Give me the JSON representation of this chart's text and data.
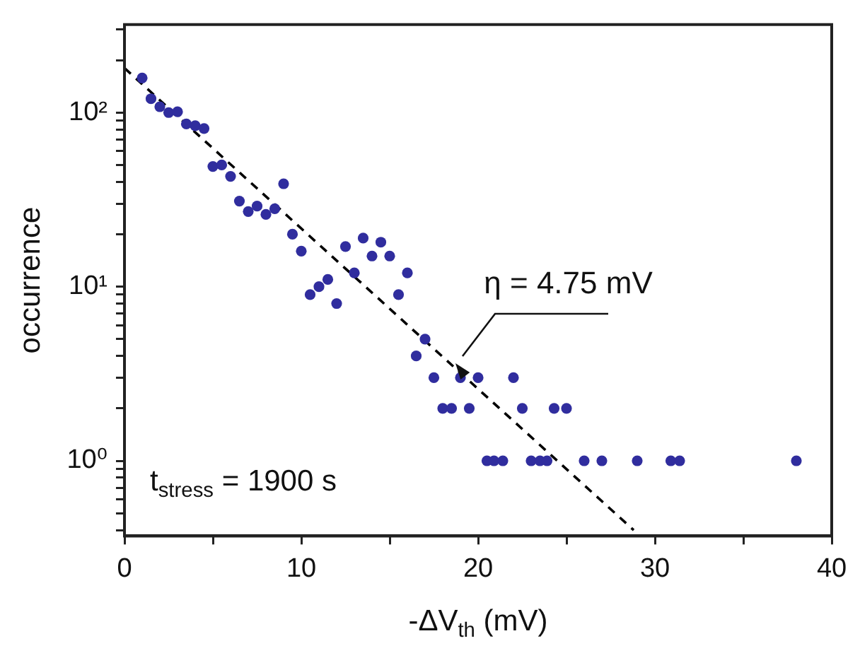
{
  "chart_data": {
    "type": "scatter",
    "xlabel": "-ΔV$_{th}$ (mV)",
    "ylabel": "occurrence",
    "log": "y",
    "grid": false,
    "legend": false,
    "marker": "circle",
    "xlim": [
      0,
      40
    ],
    "xticks": [
      0,
      {
        "value": 5,
        "label": null
      },
      10,
      {
        "value": 15,
        "label": null
      },
      20,
      {
        "value": 25,
        "label": null
      },
      30,
      {
        "value": 35,
        "label": null
      },
      40
    ],
    "ylim": [
      0.37,
      320
    ],
    "yticks": [
      {
        "value": 0.4,
        "label": null
      },
      {
        "value": 0.5,
        "label": null
      },
      {
        "value": 0.6,
        "label": null
      },
      {
        "value": 0.7,
        "label": null
      },
      {
        "value": 0.8,
        "label": null
      },
      {
        "value": 0.9,
        "label": null
      },
      {
        "value": 1,
        "label": "10⁰"
      },
      {
        "value": 2,
        "label": null
      },
      {
        "value": 3,
        "label": null
      },
      {
        "value": 4,
        "label": null
      },
      {
        "value": 5,
        "label": null
      },
      {
        "value": 6,
        "label": null
      },
      {
        "value": 7,
        "label": null
      },
      {
        "value": 8,
        "label": null
      },
      {
        "value": 9,
        "label": null
      },
      {
        "value": 10,
        "label": "10¹"
      },
      {
        "value": 20,
        "label": null
      },
      {
        "value": 30,
        "label": null
      },
      {
        "value": 40,
        "label": null
      },
      {
        "value": 50,
        "label": null
      },
      {
        "value": 60,
        "label": null
      },
      {
        "value": 70,
        "label": null
      },
      {
        "value": 80,
        "label": null
      },
      {
        "value": 90,
        "label": null
      },
      {
        "value": 100,
        "label": "10²"
      },
      {
        "value": 200,
        "label": null
      },
      {
        "value": 300,
        "label": null
      }
    ],
    "series": [
      {
        "color": "#302d9e",
        "x": [
          1.0,
          1.5,
          2.0,
          2.5,
          3.0,
          3.5,
          4.0,
          4.5,
          5.0,
          5.5,
          6.0,
          6.5,
          7.0,
          7.5,
          8.0,
          8.5,
          9.0,
          9.5,
          10.0,
          10.5,
          11.0,
          11.5,
          12.0,
          12.5,
          13.0,
          13.5,
          14.0,
          14.5,
          15.0,
          15.5,
          16.0,
          16.5,
          17.0,
          17.5,
          18.0,
          18.5,
          19.0,
          19.5,
          20.0,
          20.5,
          20.9,
          21.4,
          22.0,
          22.5,
          23.0,
          23.5,
          23.9,
          24.3,
          25.0,
          26.0,
          27.0,
          29.0,
          30.9,
          31.4,
          38.0
        ],
        "values": [
          158,
          120,
          108,
          100,
          101,
          86,
          84,
          81,
          49,
          50,
          43,
          31,
          27,
          29,
          26,
          28,
          39,
          20,
          16,
          9,
          10,
          11,
          8,
          17,
          12,
          19,
          15,
          18,
          15,
          9,
          12,
          4,
          5,
          3,
          2,
          2,
          3,
          2,
          3,
          1,
          1,
          1,
          3,
          2,
          1,
          1,
          1,
          2,
          2,
          1,
          1,
          1,
          1,
          1,
          1
        ]
      },
      {
        "type": "line",
        "color": "#000000",
        "line_style": "dashed",
        "marker": "none",
        "x": [
          0,
          28.8
        ],
        "values": [
          180,
          0.4
        ]
      }
    ],
    "annotations": [
      {
        "text": "η = 4.75 mV",
        "x": 18.7,
        "y": 3.6
      },
      "t$_{stress}$ = 1900 s"
    ]
  }
}
